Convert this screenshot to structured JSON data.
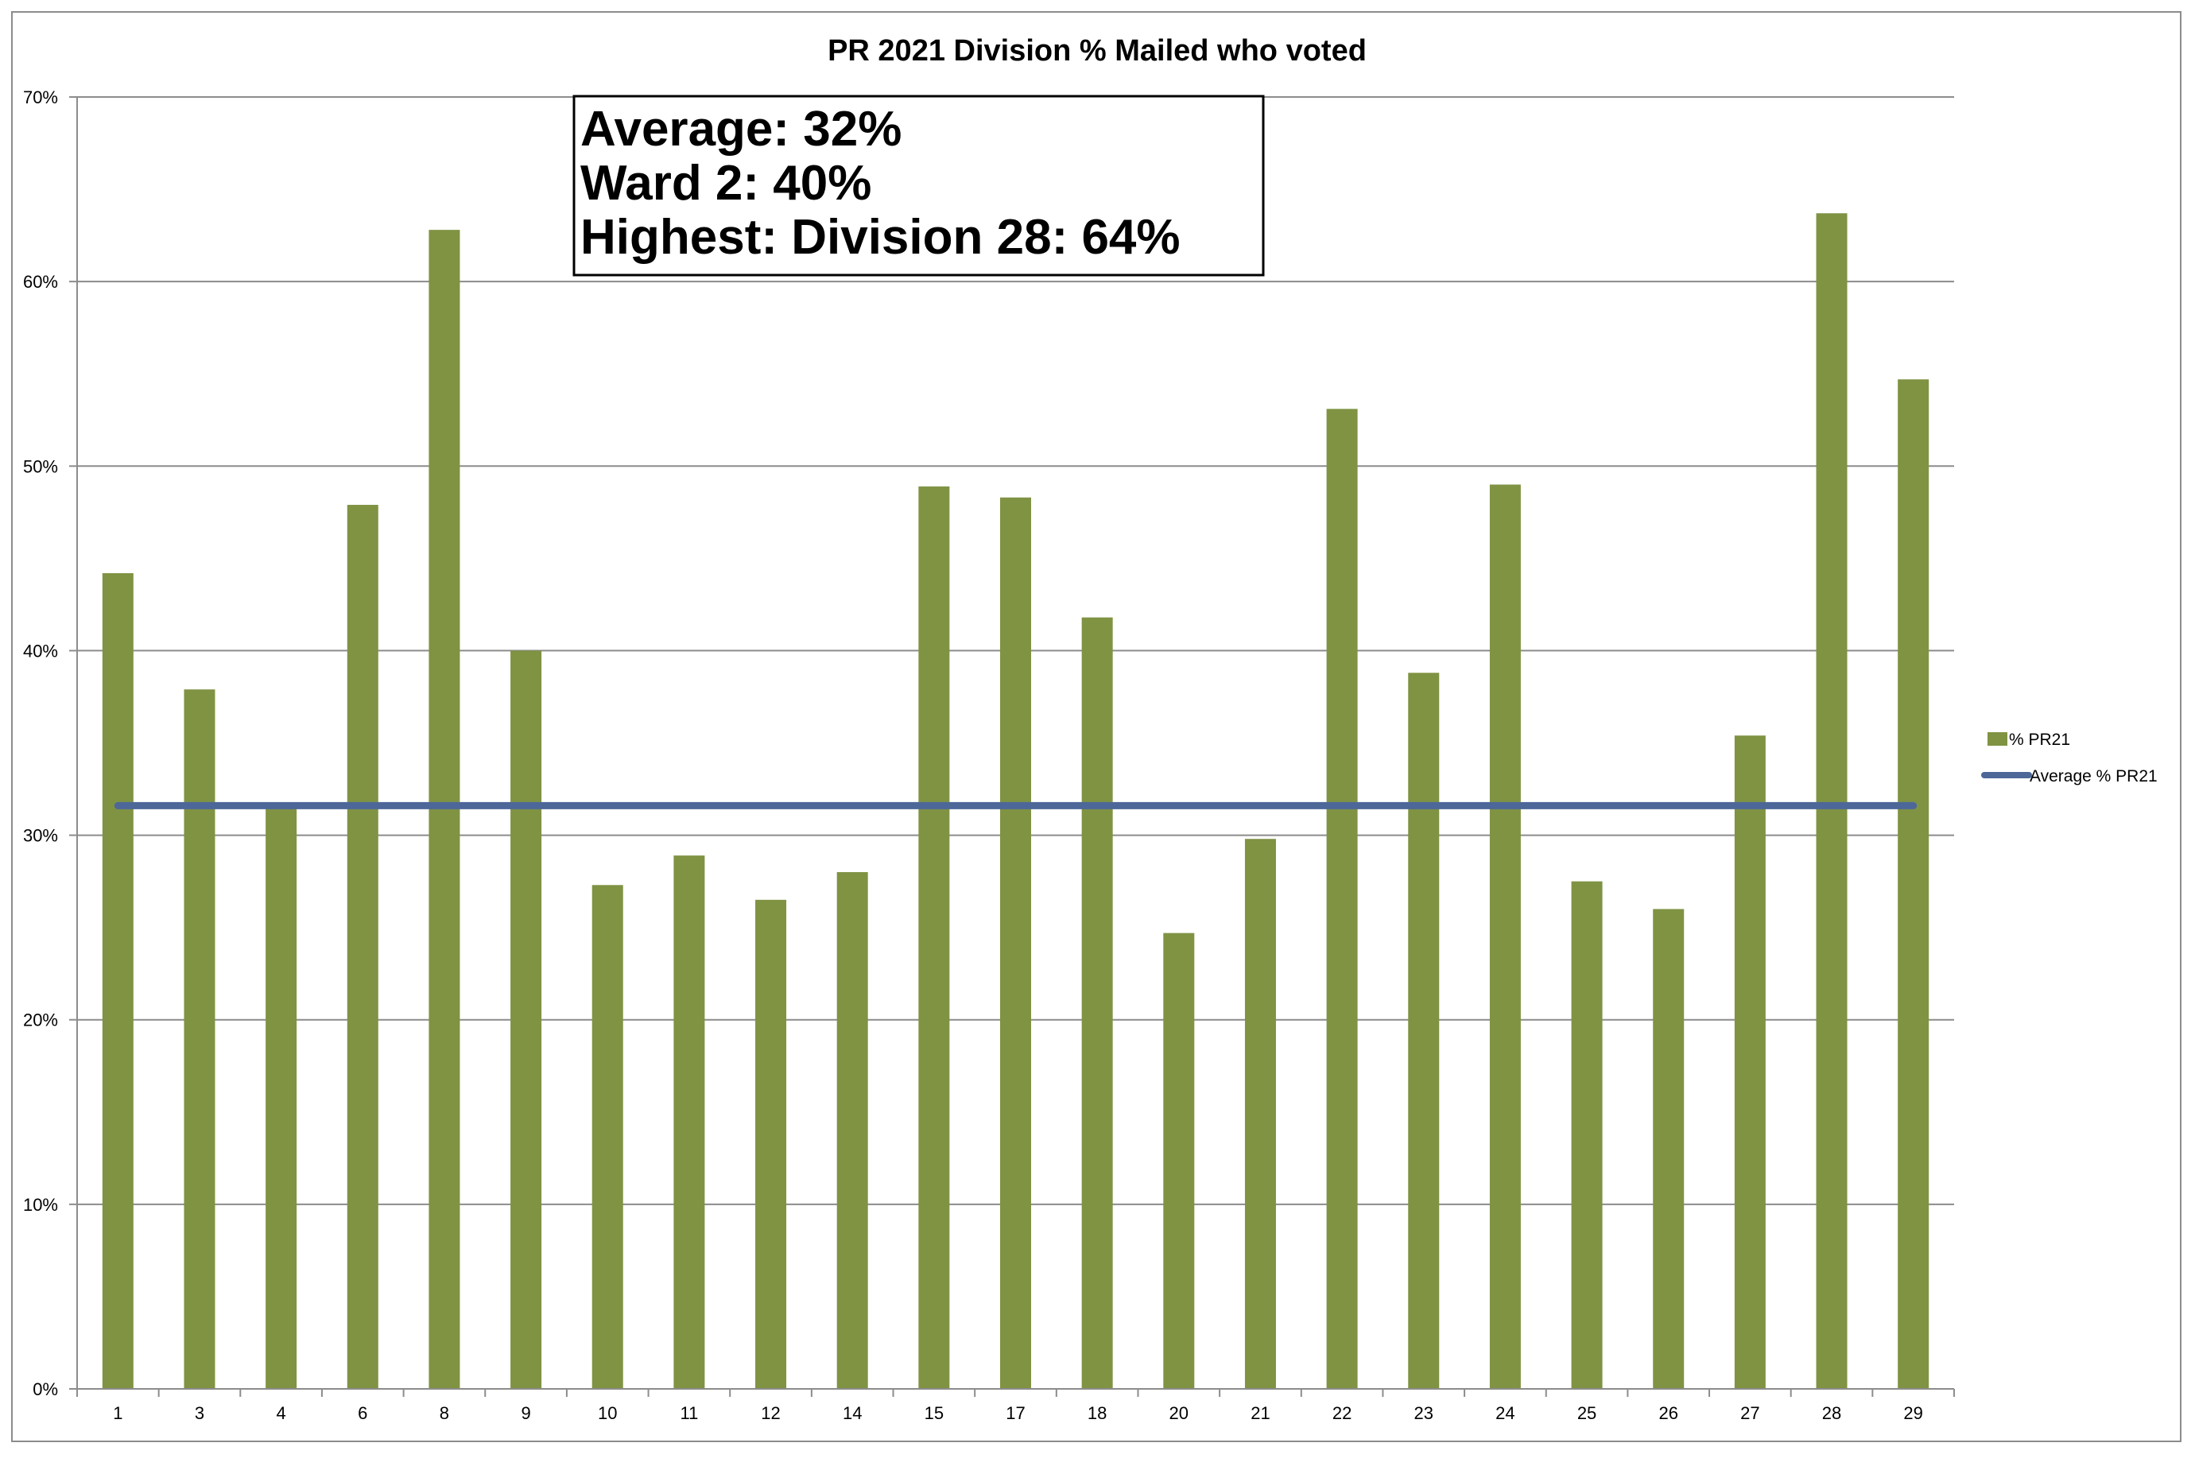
{
  "colors": {
    "bar": "#7f9343",
    "average_line": "#4d6799",
    "grid": "#8c8c8c",
    "axis": "#8c8c8c"
  },
  "annotation": {
    "lines": [
      "Average:  32%",
      "Ward 2:  40%",
      "Highest:  Division 28:  64%"
    ]
  },
  "chart_data": {
    "type": "bar",
    "title": "PR 2021 Division % Mailed who voted",
    "xlabel": "",
    "ylabel": "",
    "ylim": [
      0,
      70
    ],
    "y_ticks": [
      0,
      10,
      20,
      30,
      40,
      50,
      60,
      70
    ],
    "y_tick_labels": [
      "0%",
      "10%",
      "20%",
      "30%",
      "40%",
      "50%",
      "60%",
      "70%"
    ],
    "grid": true,
    "legend_position": "right",
    "categories": [
      "1",
      "3",
      "4",
      "6",
      "8",
      "9",
      "10",
      "11",
      "12",
      "14",
      "15",
      "17",
      "18",
      "20",
      "21",
      "22",
      "23",
      "24",
      "25",
      "26",
      "27",
      "28",
      "29"
    ],
    "series": [
      {
        "name": "% PR21",
        "kind": "bar",
        "values": [
          44.2,
          37.9,
          31.6,
          47.9,
          62.8,
          40.0,
          27.3,
          28.9,
          26.5,
          28.0,
          48.9,
          48.3,
          41.8,
          24.7,
          29.8,
          53.1,
          38.8,
          49.0,
          27.5,
          26.0,
          35.4,
          63.7,
          54.7
        ]
      },
      {
        "name": "Average % PR21",
        "kind": "line",
        "values": [
          31.6,
          31.6,
          31.6,
          31.6,
          31.6,
          31.6,
          31.6,
          31.6,
          31.6,
          31.6,
          31.6,
          31.6,
          31.6,
          31.6,
          31.6,
          31.6,
          31.6,
          31.6,
          31.6,
          31.6,
          31.6,
          31.6,
          31.6
        ]
      }
    ]
  }
}
